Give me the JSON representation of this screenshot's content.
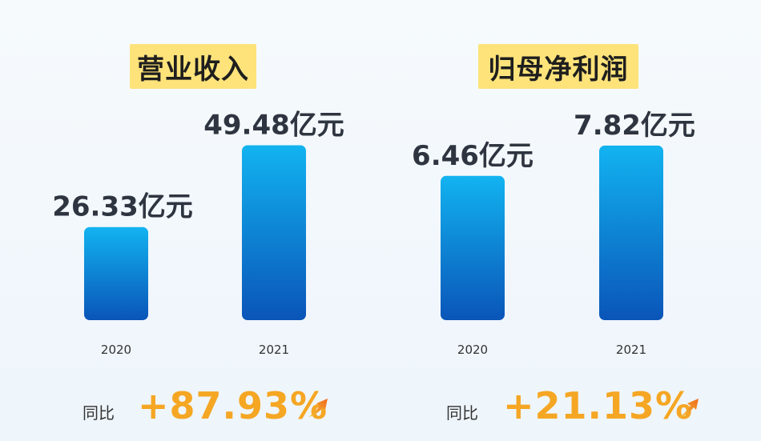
{
  "chart_data": [
    {
      "type": "bar",
      "title": "营业收入",
      "categories": [
        "2020",
        "2021"
      ],
      "values": [
        26.33,
        49.48
      ],
      "value_labels": [
        "26.33亿元",
        "49.48亿元"
      ],
      "unit": "亿元",
      "yoy_label": "同比",
      "yoy_value": "+87.93%",
      "ylim": [
        0,
        60
      ]
    },
    {
      "type": "bar",
      "title": "归母净利润",
      "categories": [
        "2020",
        "2021"
      ],
      "values": [
        6.46,
        7.82
      ],
      "value_labels": [
        "6.46亿元",
        "7.82亿元"
      ],
      "unit": "亿元",
      "yoy_label": "同比",
      "yoy_value": "+21.13%",
      "ylim": [
        0,
        9.5
      ]
    }
  ],
  "colors": {
    "bar_top": "#12b3f0",
    "bar_bottom": "#0a55b8",
    "title_bg": "#fde37a",
    "yoy_value": "#f5a623",
    "arrow_start": "#f5c23a",
    "arrow_end": "#ef6a1c"
  },
  "icons": {
    "trend": "trend-up-arrow-icon"
  }
}
